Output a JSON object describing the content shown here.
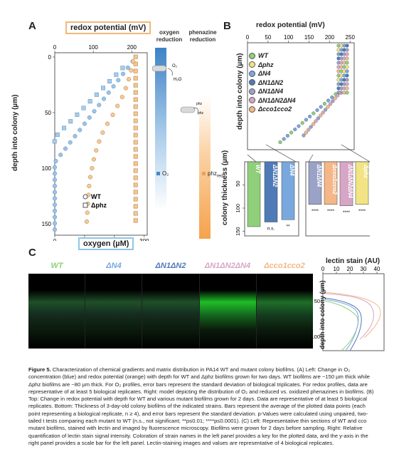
{
  "panelA": {
    "letter": "A",
    "top_axis_label": "redox potential (mV)",
    "top_ticks": [
      "0",
      "100",
      "200"
    ],
    "bottom_axis_label": "oxygen (µM)",
    "bottom_ticks": [
      "0",
      "100",
      "200",
      "300"
    ],
    "y_label": "depth into colony (µm)",
    "y_ticks": [
      "0",
      "50",
      "100",
      "150"
    ],
    "legend": [
      "WT",
      "Δphz"
    ],
    "model": {
      "oxygen_title": "oxygen\nreduction",
      "phenazine_title": "phenazine\nreduction",
      "o2_label": "O₂",
      "h2o_label": "H₂O",
      "phz_ox": "phz",
      "phz_red": "phz",
      "key_o2": "O₂",
      "key_phz": "phz",
      "key_phz_sub": "red",
      "key_ox_sub": "ox"
    },
    "chart_data": {
      "type": "scatter",
      "x_bottom": "oxygen (µM)",
      "x_top": "redox potential (mV)",
      "ylabel": "depth into colony (µm)",
      "series": [
        {
          "name": "WT",
          "color": "#6fa8dc",
          "x": [
            275,
            265,
            248,
            220,
            192,
            166,
            142,
            118,
            96,
            72,
            52,
            34,
            20,
            10,
            4,
            2,
            1,
            0
          ],
          "y": [
            0,
            6,
            12,
            18,
            24,
            30,
            36,
            42,
            48,
            54,
            60,
            66,
            72,
            78,
            84,
            90,
            96,
            102
          ]
        },
        {
          "name": "Δphz",
          "color": "#7faed8",
          "x": [
            275,
            275,
            275,
            275,
            275,
            275,
            275,
            275,
            275,
            275,
            275,
            275,
            275,
            275,
            275,
            275,
            275,
            275
          ],
          "y": [
            0,
            8,
            16,
            24,
            32,
            40,
            48,
            56,
            64,
            72,
            80,
            88,
            96,
            104,
            112,
            120,
            128,
            136
          ]
        }
      ]
    }
  },
  "panelB": {
    "letter": "B",
    "top_axis_label": "redox potential (mV)",
    "top_ticks": [
      "0",
      "50",
      "100",
      "150",
      "200",
      "250"
    ],
    "y_label": "depth into colony (µm)",
    "legend": [
      "WT",
      "Δphz",
      "ΔN4",
      "ΔN1ΔN2",
      "ΔN1ΔN4",
      "ΔN1ΔN2ΔN4",
      "Δcco1cco2"
    ],
    "bars_y_label": "colony thickness (µm)",
    "bars_y_ticks": [
      "50",
      "100",
      "150"
    ],
    "bars": [
      {
        "name": "WT",
        "color": "#8fcf7a",
        "value": 140,
        "sig": ""
      },
      {
        "name": "ΔN1ΔN2",
        "color": "#4f7ab8",
        "value": 130,
        "sig": "n.s."
      },
      {
        "name": "ΔN4",
        "color": "#79a8df",
        "value": 125,
        "sig": "**"
      },
      {
        "name": "ΔN1ΔN4",
        "color": "#9aa2c8",
        "value": 92,
        "sig": "****"
      },
      {
        "name": "Δcco1cco2",
        "color": "#f5b787",
        "value": 92,
        "sig": "****"
      },
      {
        "name": "ΔN1ΔN2ΔN4",
        "color": "#d7a6c7",
        "value": 95,
        "sig": "****"
      },
      {
        "name": "Δphz",
        "color": "#f2e384",
        "value": 92,
        "sig": "****"
      }
    ]
  },
  "panelC": {
    "letter": "C",
    "strips": [
      {
        "label": "WT",
        "color": "#8fcf7a"
      },
      {
        "label": "ΔN4",
        "color": "#79a8df"
      },
      {
        "label": "ΔN1ΔN2",
        "color": "#4f7ab8"
      },
      {
        "label": "ΔN1ΔN2ΔN4",
        "color": "#d7a6c7"
      },
      {
        "label": "Δcco1cco2",
        "color": "#f5b787"
      }
    ],
    "lectin_axis_label": "lectin stain (AU)",
    "lectin_ticks": [
      "0",
      "10",
      "20",
      "30",
      "40"
    ],
    "lectin_y_label": "depth into colony (µm)",
    "lectin_y_ticks": [
      "50",
      "100"
    ]
  },
  "caption": {
    "title": "Figure 5.",
    "body": " Characterization of chemical gradients and matrix distribution in PA14 WT and mutant colony biofilms. (A) Left: Change in O₂ concentration (blue) and redox potential (orange) with depth for WT and Δphz biofilms grown for two days. WT biofilms are ~150 µm thick while Δphz biofilms are ~80 µm thick. For O₂ profiles, error bars represent the standard deviation of biological triplicates. For redox profiles, data are representative of at least 5 biological replicates. Right: model depicting the distribution of O₂ and reduced vs. oxidized phenazines in biofilms. (B) Top: Change in redox potential with depth for WT and various mutant biofilms grown for 2 days. Data are representative of at least 5 biological replicates. Bottom: Thickness of 3-day-old colony biofilms of the indicated strains. Bars represent the average of the plotted data points (each point representing a biological replicate, n ≥ 4), and error bars represent the standard deviation. p-Values were calculated using unpaired, two-tailed t tests comparing each mutant to WT (n.s., not significant; **p≤0.01; ****p≤0.0001). (C) Left: Representative thin sections of WT and cco mutant biofilms, stained with lectin and imaged by fluorescence microscopy. Biofilms were grown for 2 days before sampling. Right: Relative quantification of lectin stain signal intensity. Coloration of strain names in the left panel provides a key for the plotted data, and the y-axis in the right panel provides a scale bar for the left panel. Lectin-staining images and values are representative of 4 biological replicates."
  }
}
